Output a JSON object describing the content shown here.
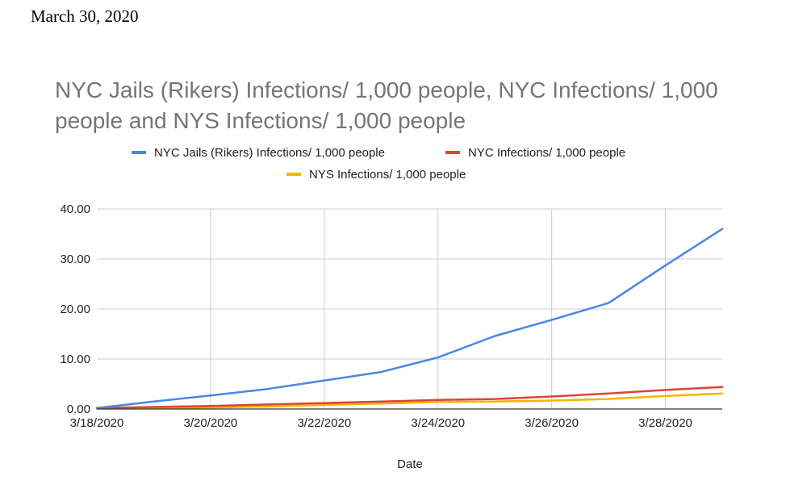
{
  "document": {
    "date": "March 30, 2020"
  },
  "chart_data": {
    "type": "line",
    "title": "NYC Jails (Rikers) Infections/ 1,000 people, NYC Infections/ 1,000 people and NYS Infections/ 1,000 people",
    "xlabel": "Date",
    "ylabel": "",
    "ylim": [
      0,
      40
    ],
    "yticks": [
      "0.00",
      "10.00",
      "20.00",
      "30.00",
      "40.00"
    ],
    "xticks": [
      "3/18/2020",
      "3/20/2020",
      "3/22/2020",
      "3/24/2020",
      "3/26/2020",
      "3/28/2020"
    ],
    "x_range_days": [
      18,
      29
    ],
    "grid": true,
    "legend_position": "top",
    "colors": {
      "NYC Jails (Rikers) Infections/ 1,000 people": "#4a86e8",
      "NYC Infections/ 1,000 people": "#db4437",
      "NYS Infections/ 1,000 people": "#f4b400"
    },
    "x": [
      "3/18/2020",
      "3/19/2020",
      "3/20/2020",
      "3/21/2020",
      "3/22/2020",
      "3/23/2020",
      "3/24/2020",
      "3/25/2020",
      "3/26/2020",
      "3/27/2020",
      "3/28/2020",
      "3/29/2020"
    ],
    "series": [
      {
        "name": "NYC Jails (Rikers) Infections/ 1,000 people",
        "color": "#4a86e8",
        "values": [
          0.2,
          1.5,
          2.7,
          4.0,
          5.7,
          7.4,
          10.3,
          14.6,
          17.8,
          21.2,
          28.7,
          36.0
        ]
      },
      {
        "name": "NYC Infections/ 1,000 people",
        "color": "#db4437",
        "values": [
          0.2,
          0.4,
          0.6,
          0.9,
          1.2,
          1.5,
          1.8,
          2.0,
          2.5,
          3.1,
          3.8,
          4.4
        ]
      },
      {
        "name": "NYS Infections/ 1,000 people",
        "color": "#f4b400",
        "values": [
          0.1,
          0.2,
          0.3,
          0.5,
          0.8,
          1.1,
          1.4,
          1.5,
          1.7,
          2.0,
          2.6,
          3.1
        ]
      }
    ]
  }
}
